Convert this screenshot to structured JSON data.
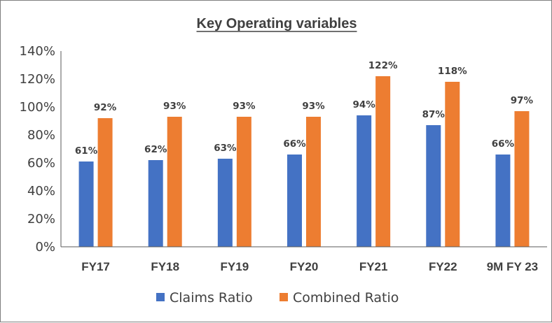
{
  "chart_data": {
    "type": "bar",
    "title": "Key Operating variables",
    "categories": [
      "FY17",
      "FY18",
      "FY19",
      "FY20",
      "FY21",
      "FY22",
      "9M FY 23"
    ],
    "series": [
      {
        "name": "Claims Ratio",
        "values": [
          61,
          62,
          63,
          66,
          94,
          87,
          66
        ],
        "labels": [
          "61%",
          "62%",
          "63%",
          "66%",
          "94%",
          "87%",
          "66%"
        ],
        "color": "#4472C4"
      },
      {
        "name": "Combined Ratio",
        "values": [
          92,
          93,
          93,
          93,
          122,
          118,
          97
        ],
        "labels": [
          "92%",
          "93%",
          "93%",
          "93%",
          "122%",
          "118%",
          "97%"
        ],
        "color": "#ED7D31"
      }
    ],
    "ylim": [
      0,
      140
    ],
    "yticks": [
      0,
      20,
      40,
      60,
      80,
      100,
      120,
      140
    ],
    "ytick_labels": [
      "0%",
      "20%",
      "40%",
      "60%",
      "80%",
      "100%",
      "120%",
      "140%"
    ],
    "grid": false,
    "legend": "bottom",
    "axis_color": "#595959"
  }
}
